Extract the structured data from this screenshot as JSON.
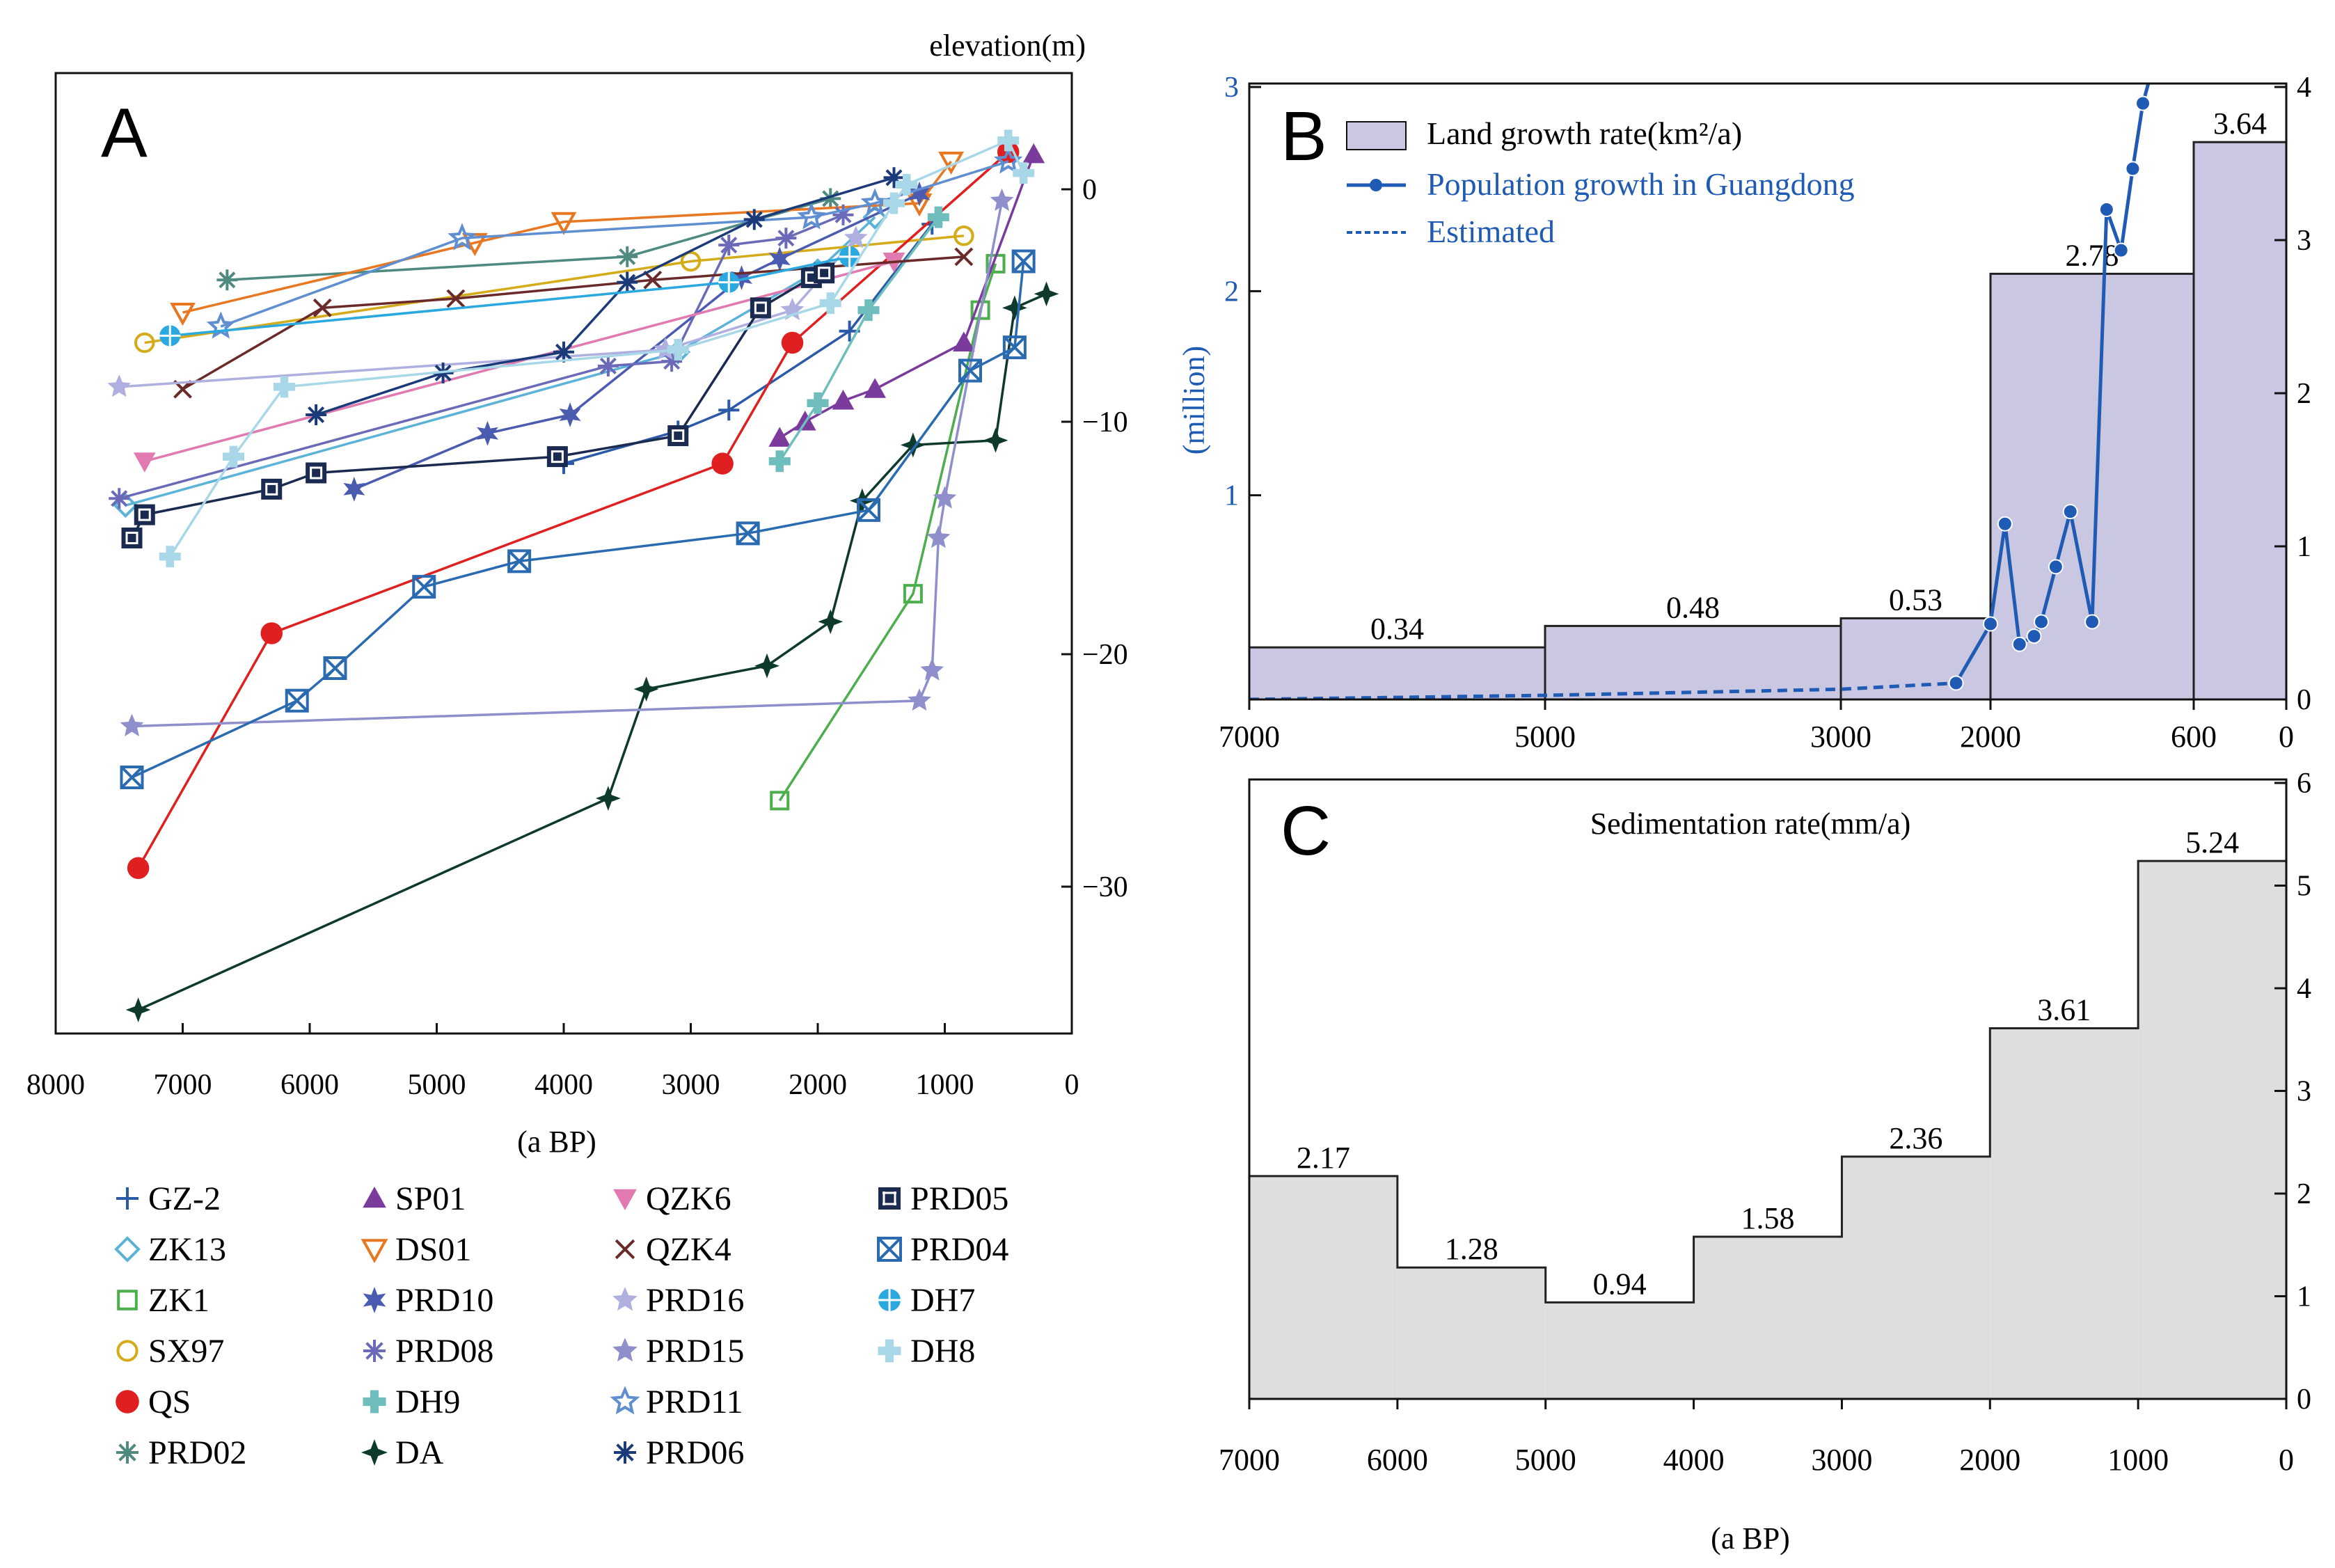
{
  "chart_data": [
    {
      "type": "line",
      "panel_label": "A",
      "xlabel": "(a BP)",
      "ylabel": "elevation(m)",
      "xlim": [
        8000,
        0
      ],
      "ylim": [
        -35.5,
        5
      ],
      "x_ticks": [
        "8000",
        "7000",
        "6000",
        "5000",
        "4000",
        "3000",
        "2000",
        "1000",
        "0"
      ],
      "y_ticks": [
        "0",
        "−10",
        "−20",
        "−30"
      ],
      "series": [
        {
          "name": "GZ-2",
          "color": "#2a5aa8",
          "marker": "plus",
          "points": [
            [
              4000,
              -11.8
            ],
            [
              3100,
              -10.4
            ],
            [
              2700,
              -9.5
            ],
            [
              1750,
              -6.1
            ],
            [
              1100,
              -1.5
            ]
          ]
        },
        {
          "name": "ZK13",
          "color": "#5bb3d8",
          "marker": "diamond",
          "points": [
            [
              7450,
              -13.6
            ],
            [
              3100,
              -7
            ],
            [
              2000,
              -3.5
            ],
            [
              1550,
              -1.2
            ]
          ]
        },
        {
          "name": "ZK1",
          "color": "#4cae4c",
          "marker": "square-open",
          "points": [
            [
              2300,
              -26.3
            ],
            [
              1250,
              -17.4
            ],
            [
              720,
              -5.2
            ],
            [
              600,
              -3.2
            ]
          ]
        },
        {
          "name": "SX97",
          "color": "#d4ac1a",
          "marker": "circle-open",
          "points": [
            [
              7300,
              -6.6
            ],
            [
              3000,
              -3.1
            ],
            [
              850,
              -2
            ]
          ]
        },
        {
          "name": "QS",
          "color": "#e02020",
          "marker": "circle",
          "points": [
            [
              7350,
              -29.2
            ],
            [
              6300,
              -19.1
            ],
            [
              2750,
              -11.8
            ],
            [
              2200,
              -6.6
            ],
            [
              500,
              1.6
            ]
          ]
        },
        {
          "name": "PRD02",
          "color": "#4f8a80",
          "marker": "asterisk",
          "points": [
            [
              6650,
              -3.9
            ],
            [
              3500,
              -2.9
            ],
            [
              1900,
              -0.4
            ]
          ]
        },
        {
          "name": "SP01",
          "color": "#7a3b9c",
          "marker": "triangle",
          "points": [
            [
              2300,
              -10.7
            ],
            [
              2100,
              -10
            ],
            [
              1800,
              -9.1
            ],
            [
              1550,
              -8.6
            ],
            [
              850,
              -6.6
            ],
            [
              300,
              1.5
            ]
          ]
        },
        {
          "name": "DS01",
          "color": "#e87722",
          "marker": "triangle-down",
          "points": [
            [
              7000,
              -5.3
            ],
            [
              4700,
              -2.3
            ],
            [
              4000,
              -1.4
            ],
            [
              1200,
              -0.6
            ],
            [
              950,
              1.2
            ]
          ]
        },
        {
          "name": "PRD10",
          "color": "#4a5bb0",
          "marker": "star6",
          "points": [
            [
              5650,
              -12.9
            ],
            [
              4600,
              -10.5
            ],
            [
              3950,
              -9.7
            ],
            [
              2600,
              -3.8
            ],
            [
              2300,
              -3
            ],
            [
              1200,
              -0.2
            ]
          ]
        },
        {
          "name": "PRD08",
          "color": "#6a6ab8",
          "marker": "asterisk",
          "points": [
            [
              7500,
              -13.3
            ],
            [
              3650,
              -7.6
            ],
            [
              3150,
              -7.4
            ],
            [
              2700,
              -2.4
            ],
            [
              2250,
              -2.1
            ],
            [
              1800,
              -1.1
            ]
          ]
        },
        {
          "name": "DH9",
          "color": "#6fbdbd",
          "marker": "cross-round",
          "points": [
            [
              2300,
              -11.7
            ],
            [
              2000,
              -9.2
            ],
            [
              1600,
              -5.2
            ],
            [
              1050,
              -1.2
            ]
          ]
        },
        {
          "name": "DA",
          "color": "#0e3a2e",
          "marker": "cross4",
          "points": [
            [
              7350,
              -35.3
            ],
            [
              3650,
              -26.2
            ],
            [
              3350,
              -21.5
            ],
            [
              2400,
              -20.5
            ],
            [
              1900,
              -18.6
            ],
            [
              1650,
              -13.4
            ],
            [
              1250,
              -11
            ],
            [
              600,
              -10.8
            ],
            [
              450,
              -5.1
            ],
            [
              200,
              -4.5
            ]
          ]
        },
        {
          "name": "QZK6",
          "color": "#e07ab0",
          "marker": "triangle-down",
          "points": [
            [
              7300,
              -11.7
            ],
            [
              1400,
              -3.1
            ]
          ]
        },
        {
          "name": "QZK4",
          "color": "#6a2a2a",
          "marker": "x",
          "points": [
            [
              7000,
              -8.6
            ],
            [
              5900,
              -5.1
            ],
            [
              4850,
              -4.7
            ],
            [
              3300,
              -3.9
            ],
            [
              850,
              -2.9
            ]
          ]
        },
        {
          "name": "PRD16",
          "color": "#b0b0e0",
          "marker": "star",
          "points": [
            [
              7500,
              -8.5
            ],
            [
              3200,
              -6.9
            ],
            [
              2200,
              -5.2
            ],
            [
              1700,
              -2.1
            ]
          ]
        },
        {
          "name": "PRD15",
          "color": "#8f8fcc",
          "marker": "star",
          "points": [
            [
              7400,
              -23.1
            ],
            [
              1200,
              -22
            ],
            [
              1100,
              -20.7
            ],
            [
              1050,
              -15
            ],
            [
              1000,
              -13.3
            ],
            [
              550,
              -0.5
            ]
          ]
        },
        {
          "name": "PRD11",
          "color": "#5f8fd0",
          "marker": "star-open",
          "points": [
            [
              6700,
              -5.9
            ],
            [
              4800,
              -2.1
            ],
            [
              2050,
              -1.2
            ],
            [
              1550,
              -0.6
            ],
            [
              500,
              1.2
            ]
          ]
        },
        {
          "name": "PRD06",
          "color": "#1a3a7a",
          "marker": "asterisk",
          "points": [
            [
              5950,
              -9.7
            ],
            [
              4950,
              -7.9
            ],
            [
              4000,
              -7
            ],
            [
              3500,
              -4
            ],
            [
              2500,
              -1.3
            ],
            [
              1400,
              0.5
            ]
          ]
        },
        {
          "name": "PRD05",
          "color": "#1a2a50",
          "marker": "grid",
          "points": [
            [
              7400,
              -15
            ],
            [
              7300,
              -14
            ],
            [
              6300,
              -12.9
            ],
            [
              5950,
              -12.2
            ],
            [
              4050,
              -11.5
            ],
            [
              3100,
              -10.6
            ],
            [
              2450,
              -5.1
            ],
            [
              2050,
              -3.8
            ],
            [
              1950,
              -3.6
            ]
          ]
        },
        {
          "name": "PRD04",
          "color": "#2a6ab0",
          "marker": "x-box",
          "points": [
            [
              7400,
              -25.3
            ],
            [
              6100,
              -22
            ],
            [
              5800,
              -20.6
            ],
            [
              5100,
              -17.1
            ],
            [
              4350,
              -16
            ],
            [
              2550,
              -14.8
            ],
            [
              1600,
              -13.8
            ],
            [
              800,
              -7.8
            ],
            [
              450,
              -6.8
            ],
            [
              380,
              -3.1
            ]
          ]
        },
        {
          "name": "DH7",
          "color": "#2aa8e0",
          "marker": "cross-circle",
          "points": [
            [
              7100,
              -6.3
            ],
            [
              2700,
              -4
            ],
            [
              1750,
              -2.9
            ]
          ]
        },
        {
          "name": "DH8",
          "color": "#a8d8e8",
          "marker": "cross-round",
          "points": [
            [
              7100,
              -15.8
            ],
            [
              6600,
              -11.5
            ],
            [
              6200,
              -8.5
            ],
            [
              3100,
              -6.9
            ],
            [
              1900,
              -4.9
            ],
            [
              1400,
              -0.6
            ],
            [
              1300,
              0.2
            ],
            [
              500,
              2.1
            ],
            [
              380,
              0.7
            ]
          ]
        }
      ]
    },
    {
      "type": "bar",
      "panel_label": "B",
      "xlabel": "",
      "ylabel_left": "(million)",
      "x_ticks": [
        "7000",
        "5000",
        "3000",
        "2000",
        "600",
        "0"
      ],
      "left_ticks": [
        "3",
        "2",
        "1"
      ],
      "right_ticks": [
        "4",
        "3",
        "2",
        "1",
        "0"
      ],
      "ylim_left": [
        0,
        3
      ],
      "ylim_right": [
        0,
        4
      ],
      "bar_series_name": "Land growth rate(km²/a)",
      "bars": [
        {
          "from": 7000,
          "to": 5000,
          "value": 0.34,
          "label": "0.34"
        },
        {
          "from": 5000,
          "to": 3000,
          "value": 0.48,
          "label": "0.48"
        },
        {
          "from": 3000,
          "to": 2000,
          "value": 0.53,
          "label": "0.53"
        },
        {
          "from": 2000,
          "to": 600,
          "value": 2.78,
          "label": "2.78"
        },
        {
          "from": 600,
          "to": 0,
          "value": 3.64,
          "label": "3.64"
        }
      ],
      "population_series_name": "Population growth in Guangdong",
      "estimated_series_name": "Estimated",
      "estimated_points": [
        [
          7000,
          0
        ],
        [
          5000,
          0.02
        ],
        [
          3000,
          0.05
        ],
        [
          2230,
          0.08
        ]
      ],
      "population_points": [
        [
          2230,
          0.08
        ],
        [
          2000,
          0.37
        ],
        [
          1900,
          0.86
        ],
        [
          1800,
          0.27
        ],
        [
          1700,
          0.31
        ],
        [
          1650,
          0.38
        ],
        [
          1550,
          0.65
        ],
        [
          1450,
          0.92
        ],
        [
          1300,
          0.38
        ],
        [
          1200,
          2.4
        ],
        [
          1100,
          2.2
        ],
        [
          1020,
          2.6
        ],
        [
          950,
          2.92
        ],
        [
          900,
          3.05
        ]
      ]
    },
    {
      "type": "bar",
      "panel_label": "C",
      "title": "Sedimentation rate(mm/a)",
      "xlabel": "(a BP)",
      "x_ticks": [
        "7000",
        "6000",
        "5000",
        "4000",
        "3000",
        "2000",
        "1000",
        "0"
      ],
      "right_ticks": [
        "6",
        "5",
        "4",
        "3",
        "2",
        "1",
        "0"
      ],
      "ylim": [
        0,
        6
      ],
      "bars": [
        {
          "from": 7000,
          "to": 6000,
          "value": 2.17,
          "label": "2.17"
        },
        {
          "from": 6000,
          "to": 5000,
          "value": 1.28,
          "label": "1.28"
        },
        {
          "from": 5000,
          "to": 4000,
          "value": 0.94,
          "label": "0.94"
        },
        {
          "from": 4000,
          "to": 3000,
          "value": 1.58,
          "label": "1.58"
        },
        {
          "from": 3000,
          "to": 2000,
          "value": 2.36,
          "label": "2.36"
        },
        {
          "from": 2000,
          "to": 1000,
          "value": 3.61,
          "label": "3.61"
        },
        {
          "from": 1000,
          "to": 0,
          "value": 5.24,
          "label": "5.24"
        }
      ]
    }
  ],
  "colors": {
    "land_bar_fill": "#c9c7e2",
    "sed_bar_fill": "#dedede",
    "population_line": "#1f5bb5",
    "axis": "#111111"
  }
}
